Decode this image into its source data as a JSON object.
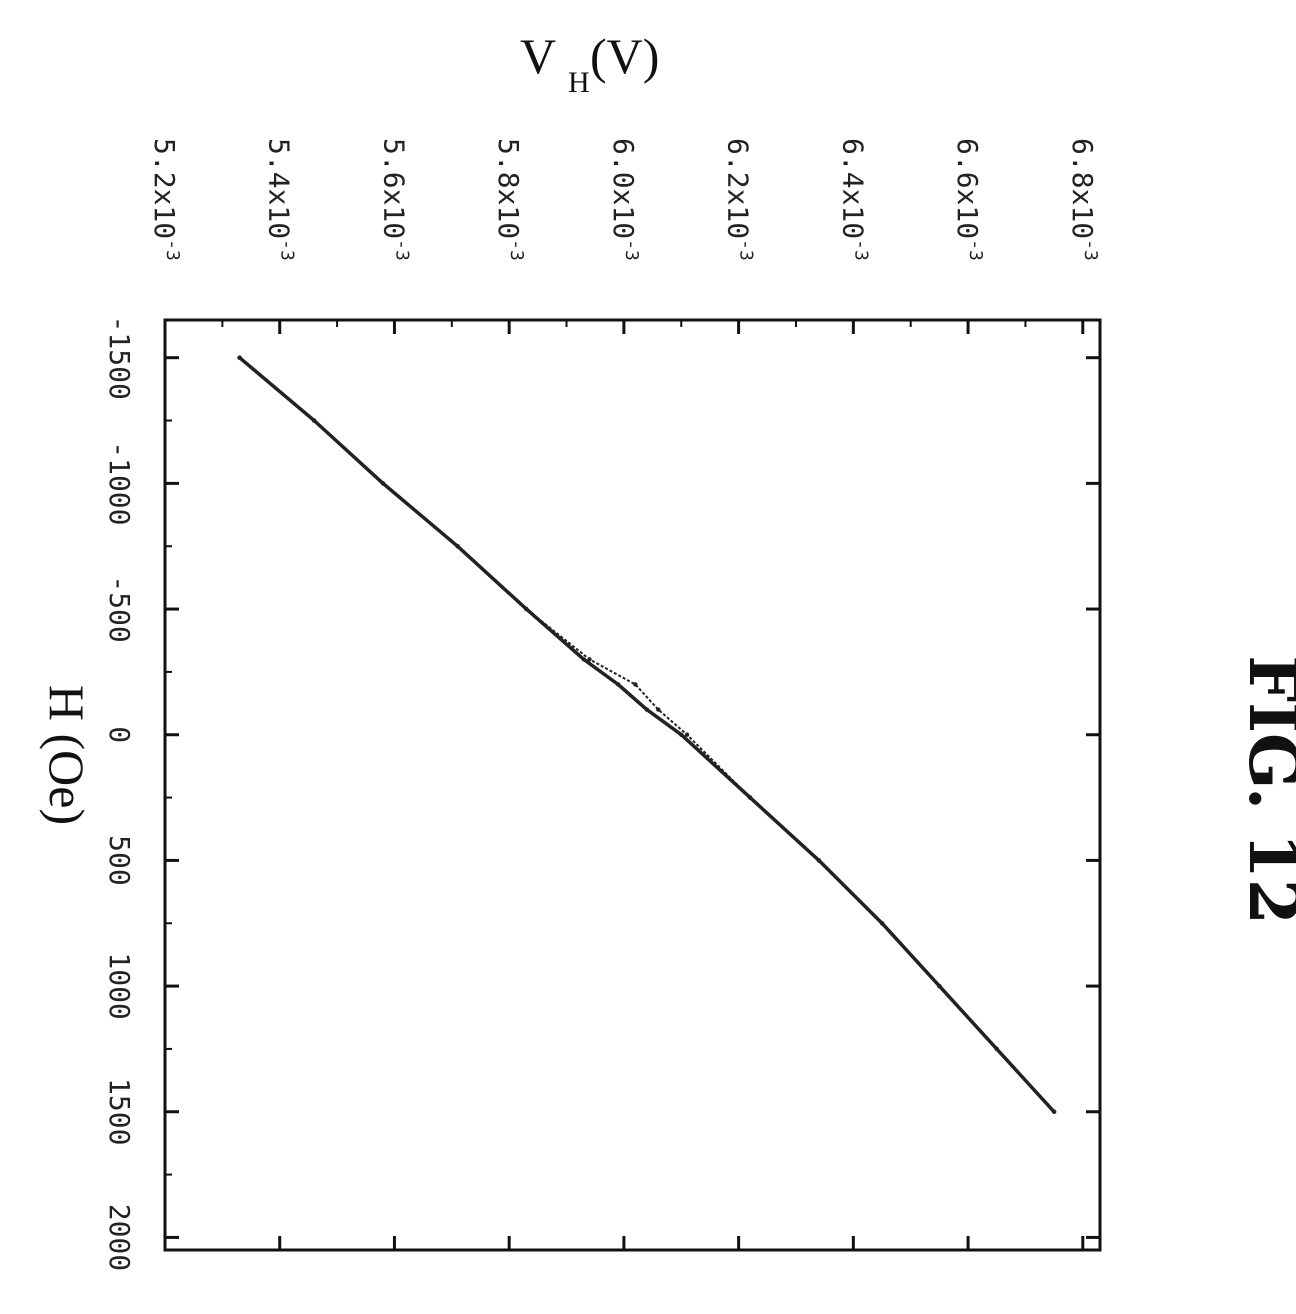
{
  "figure_label": "FIG. 12",
  "chart_data": {
    "type": "line",
    "title": "",
    "xlabel": "H (Oe)",
    "ylabel": "V",
    "ylabel_subscript": "H",
    "ylabel_suffix": "(V)",
    "xlim": [
      -1650,
      2050
    ],
    "ylim": [
      5.2,
      6.83
    ],
    "x_ticks": [
      {
        "value": -1500,
        "label": "-1500"
      },
      {
        "value": -1000,
        "label": "-1000"
      },
      {
        "value": -500,
        "label": "-500"
      },
      {
        "value": 0,
        "label": "0"
      },
      {
        "value": 500,
        "label": "500"
      },
      {
        "value": 1000,
        "label": "1000"
      },
      {
        "value": 1500,
        "label": "1500"
      },
      {
        "value": 2000,
        "label": "2000"
      }
    ],
    "y_ticks": [
      {
        "value": 5.2,
        "label": "5.2x10",
        "exp": "-3"
      },
      {
        "value": 5.4,
        "label": "5.4x10",
        "exp": "-3"
      },
      {
        "value": 5.6,
        "label": "5.6x10",
        "exp": "-3"
      },
      {
        "value": 5.8,
        "label": "5.8x10",
        "exp": "-3"
      },
      {
        "value": 6.0,
        "label": "6.0x10",
        "exp": "-3"
      },
      {
        "value": 6.2,
        "label": "6.2x10",
        "exp": "-3"
      },
      {
        "value": 6.4,
        "label": "6.4x10",
        "exp": "-3"
      },
      {
        "value": 6.6,
        "label": "6.6x10",
        "exp": "-3"
      },
      {
        "value": 6.8,
        "label": "6.8x10",
        "exp": "-3"
      }
    ],
    "y_unit_note": "y values in units of 10^-3 V",
    "grid": false,
    "series": [
      {
        "x": [
          -1500,
          -1250,
          -1000,
          -750,
          -500,
          -300,
          -200,
          -100,
          0,
          250,
          500,
          750,
          1000,
          1250,
          1500
        ],
        "y": [
          5.33,
          5.46,
          5.58,
          5.71,
          5.83,
          5.93,
          5.99,
          6.04,
          6.1,
          6.22,
          6.34,
          6.45,
          6.55,
          6.65,
          6.75
        ]
      },
      {
        "x": [
          -1500,
          -1250,
          -1000,
          -750,
          -500,
          -300,
          -200,
          -100,
          0,
          250,
          500,
          750,
          1000,
          1250,
          1500
        ],
        "y": [
          5.33,
          5.46,
          5.58,
          5.71,
          5.83,
          5.94,
          6.02,
          6.06,
          6.11,
          6.22,
          6.34,
          6.45,
          6.55,
          6.65,
          6.75
        ]
      }
    ]
  }
}
